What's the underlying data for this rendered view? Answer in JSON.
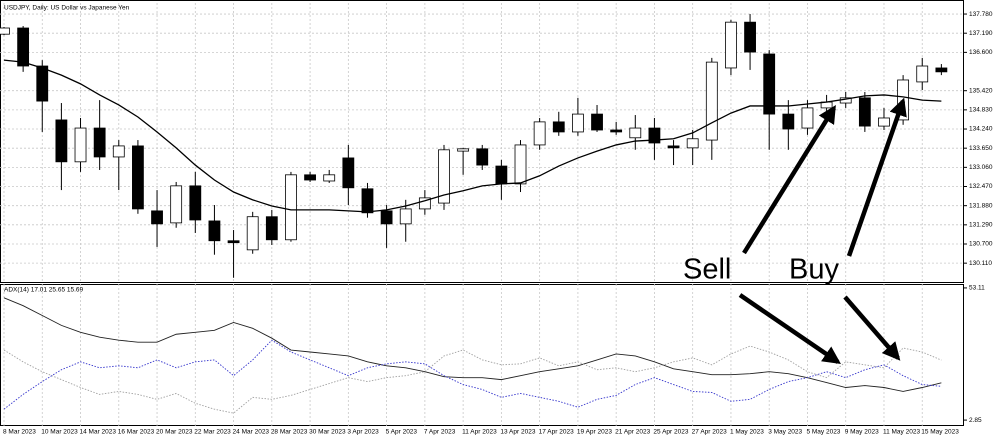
{
  "chart_data": [
    {
      "type": "candlestick",
      "title": "USDJPY, Daily: US Dollar vs Japanese Yen",
      "categories": [
        "8 Mar 2023",
        null,
        "10 Mar 2023",
        null,
        "14 Mar 2023",
        null,
        "16 Mar 2023",
        null,
        "20 Mar 2023",
        null,
        "22 Mar 2023",
        null,
        "24 Mar 2023",
        null,
        "28 Mar 2023",
        null,
        "30 Mar 2023",
        null,
        "3 Apr 2023",
        null,
        "5 Apr 2023",
        null,
        "7 Apr 2023",
        null,
        "11 Apr 2023",
        null,
        "13 Apr 2023",
        null,
        "17 Apr 2023",
        null,
        "19 Apr 2023",
        null,
        "21 Apr 2023",
        null,
        "25 Apr 2023",
        null,
        "27 Apr 2023",
        null,
        "1 May 2023",
        null,
        "3 May 2023",
        null,
        "5 May 2023",
        null,
        "9 May 2023",
        null,
        "11 May 2023",
        null,
        "15 May 2023",
        null
      ],
      "open": [
        137.16,
        137.35,
        136.18,
        134.52,
        133.23,
        134.27,
        133.38,
        133.72,
        131.72,
        131.35,
        132.49,
        131.41,
        130.8,
        130.52,
        131.54,
        130.83,
        132.83,
        132.64,
        133.35,
        132.4,
        131.72,
        131.32,
        131.78,
        131.96,
        133.56,
        133.63,
        133.1,
        132.55,
        133.75,
        134.46,
        134.15,
        134.7,
        134.21,
        133.97,
        134.27,
        133.72,
        133.66,
        133.9,
        136.12,
        137.53,
        136.55,
        134.7,
        134.27,
        134.89,
        135.04,
        135.2,
        134.33,
        134.52,
        135.69,
        136.12
      ],
      "high": [
        137.38,
        137.41,
        136.36,
        135.04,
        134.58,
        135.13,
        133.9,
        133.9,
        132.36,
        132.61,
        132.92,
        131.9,
        131.13,
        131.69,
        131.75,
        132.92,
        132.92,
        132.98,
        133.75,
        132.58,
        131.9,
        132.06,
        132.36,
        133.75,
        133.66,
        133.75,
        133.29,
        133.9,
        134.58,
        134.77,
        135.2,
        134.98,
        134.46,
        134.67,
        134.58,
        133.9,
        134.21,
        136.43,
        137.6,
        137.78,
        136.67,
        135.13,
        135.13,
        135.29,
        135.38,
        135.38,
        134.89,
        135.9,
        136.43,
        136.24
      ],
      "low": [
        137.13,
        136.0,
        134.15,
        132.36,
        132.92,
        132.98,
        132.36,
        131.63,
        130.61,
        131.2,
        131.04,
        130.37,
        129.66,
        130.4,
        130.67,
        130.77,
        132.61,
        132.58,
        131.9,
        131.51,
        130.58,
        130.77,
        131.6,
        131.75,
        132.83,
        132.98,
        132.06,
        132.3,
        133.6,
        134.03,
        134.03,
        134.15,
        134.06,
        133.6,
        133.29,
        133.13,
        133.13,
        133.29,
        135.9,
        136.06,
        133.6,
        133.6,
        134.06,
        134.73,
        134.89,
        134.15,
        134.21,
        134.37,
        135.44,
        135.9
      ],
      "close": [
        137.35,
        136.18,
        135.1,
        133.23,
        134.27,
        133.38,
        133.72,
        131.78,
        131.32,
        132.49,
        131.44,
        130.8,
        130.74,
        131.54,
        130.83,
        132.83,
        132.67,
        132.83,
        132.43,
        131.66,
        131.32,
        131.78,
        132.12,
        133.6,
        133.63,
        133.13,
        132.55,
        133.75,
        134.46,
        134.15,
        134.7,
        134.21,
        134.15,
        134.27,
        133.81,
        133.66,
        133.94,
        136.3,
        137.53,
        136.61,
        134.7,
        134.24,
        134.89,
        135.07,
        135.2,
        134.33,
        134.58,
        135.75,
        136.18,
        136.0
      ],
      "lines": [
        {
          "color": "#000000",
          "values": [
            136.36,
            136.3,
            136.12,
            135.9,
            135.63,
            135.29,
            134.98,
            134.61,
            134.15,
            133.66,
            133.13,
            132.67,
            132.3,
            132.06,
            131.87,
            131.75,
            131.75,
            131.75,
            131.72,
            131.69,
            131.75,
            131.87,
            132.03,
            132.21,
            132.34,
            132.49,
            132.55,
            132.58,
            132.8,
            133.1,
            133.35,
            133.56,
            133.75,
            133.87,
            133.9,
            133.94,
            134.12,
            134.43,
            134.73,
            134.95,
            134.95,
            134.95,
            135.01,
            135.07,
            135.16,
            135.26,
            135.29,
            135.23,
            135.13,
            135.1
          ]
        }
      ],
      "ylim": [
        129.53,
        138.12
      ],
      "yticks": [
        {
          "value": 137.78,
          "label": "137.780"
        },
        {
          "value": 137.19,
          "label": "137.190"
        },
        {
          "value": 136.6,
          "label": "136.600"
        },
        {
          "value": 135.42,
          "label": "135.420"
        },
        {
          "value": 134.83,
          "label": "134.830"
        },
        {
          "value": 134.24,
          "label": "134.240"
        },
        {
          "value": 133.65,
          "label": "133.650"
        },
        {
          "value": 133.06,
          "label": "133.060"
        },
        {
          "value": 132.47,
          "label": "132.470"
        },
        {
          "value": 131.88,
          "label": "131.880"
        },
        {
          "value": 131.29,
          "label": "131.290"
        },
        {
          "value": 130.7,
          "label": "130.700"
        },
        {
          "value": 130.11,
          "label": "130.110"
        }
      ],
      "grid": true,
      "bull_color": "#ffffff",
      "bear_color": "#000000",
      "annotations": [
        "Sell",
        "Buy"
      ]
    },
    {
      "type": "line",
      "title": "ADX(14) 17.01 25.65 15.69",
      "series": [
        {
          "color": "#222222",
          "dash": false,
          "values": [
            49.36,
            46.36,
            42.61,
            38.86,
            36.24,
            34.36,
            33.24,
            32.49,
            32.49,
            35.49,
            36.24,
            36.99,
            39.99,
            37.74,
            33.99,
            29.49,
            28.74,
            27.99,
            27.24,
            24.99,
            23.49,
            22.74,
            21.24,
            19.36,
            18.99,
            18.99,
            18.24,
            19.74,
            21.24,
            22.36,
            23.49,
            25.74,
            27.99,
            27.24,
            24.99,
            22.36,
            21.24,
            20.11,
            20.11,
            20.49,
            21.24,
            20.49,
            18.99,
            17.11,
            15.24,
            15.99,
            15.24,
            13.74,
            15.24,
            17.01
          ]
        },
        {
          "color": "#a0a0a0",
          "dash": true,
          "values": [
            29.49,
            24.99,
            21.24,
            18.24,
            15.24,
            12.61,
            13.74,
            12.61,
            10.74,
            12.99,
            9.24,
            6.99,
            5.49,
            11.49,
            10.74,
            12.24,
            14.49,
            16.74,
            18.99,
            17.49,
            18.99,
            19.74,
            21.24,
            27.24,
            29.49,
            25.74,
            23.86,
            24.24,
            26.49,
            23.49,
            24.99,
            21.99,
            22.74,
            21.24,
            22.74,
            24.99,
            26.49,
            23.86,
            27.99,
            30.99,
            28.74,
            25.74,
            21.24,
            18.99,
            24.99,
            23.86,
            22.74,
            30.24,
            28.74,
            25.65
          ]
        },
        {
          "color": "#3333cc",
          "dash": true,
          "values": [
            6.99,
            12.61,
            17.49,
            21.99,
            24.99,
            22.74,
            23.49,
            22.74,
            25.74,
            22.74,
            24.99,
            25.74,
            19.74,
            25.74,
            33.24,
            28.74,
            25.74,
            22.74,
            19.74,
            22.74,
            24.24,
            24.99,
            24.24,
            19.74,
            16.36,
            14.49,
            11.49,
            12.99,
            11.49,
            9.99,
            7.74,
            10.74,
            12.24,
            16.36,
            18.99,
            16.36,
            13.74,
            13.36,
            9.99,
            10.74,
            14.49,
            17.49,
            18.99,
            21.24,
            18.99,
            21.99,
            23.86,
            19.74,
            16.36,
            15.69
          ]
        }
      ],
      "ylim": [
        0.6,
        54.6
      ],
      "yticks": [
        53.11,
        2.85
      ]
    }
  ]
}
